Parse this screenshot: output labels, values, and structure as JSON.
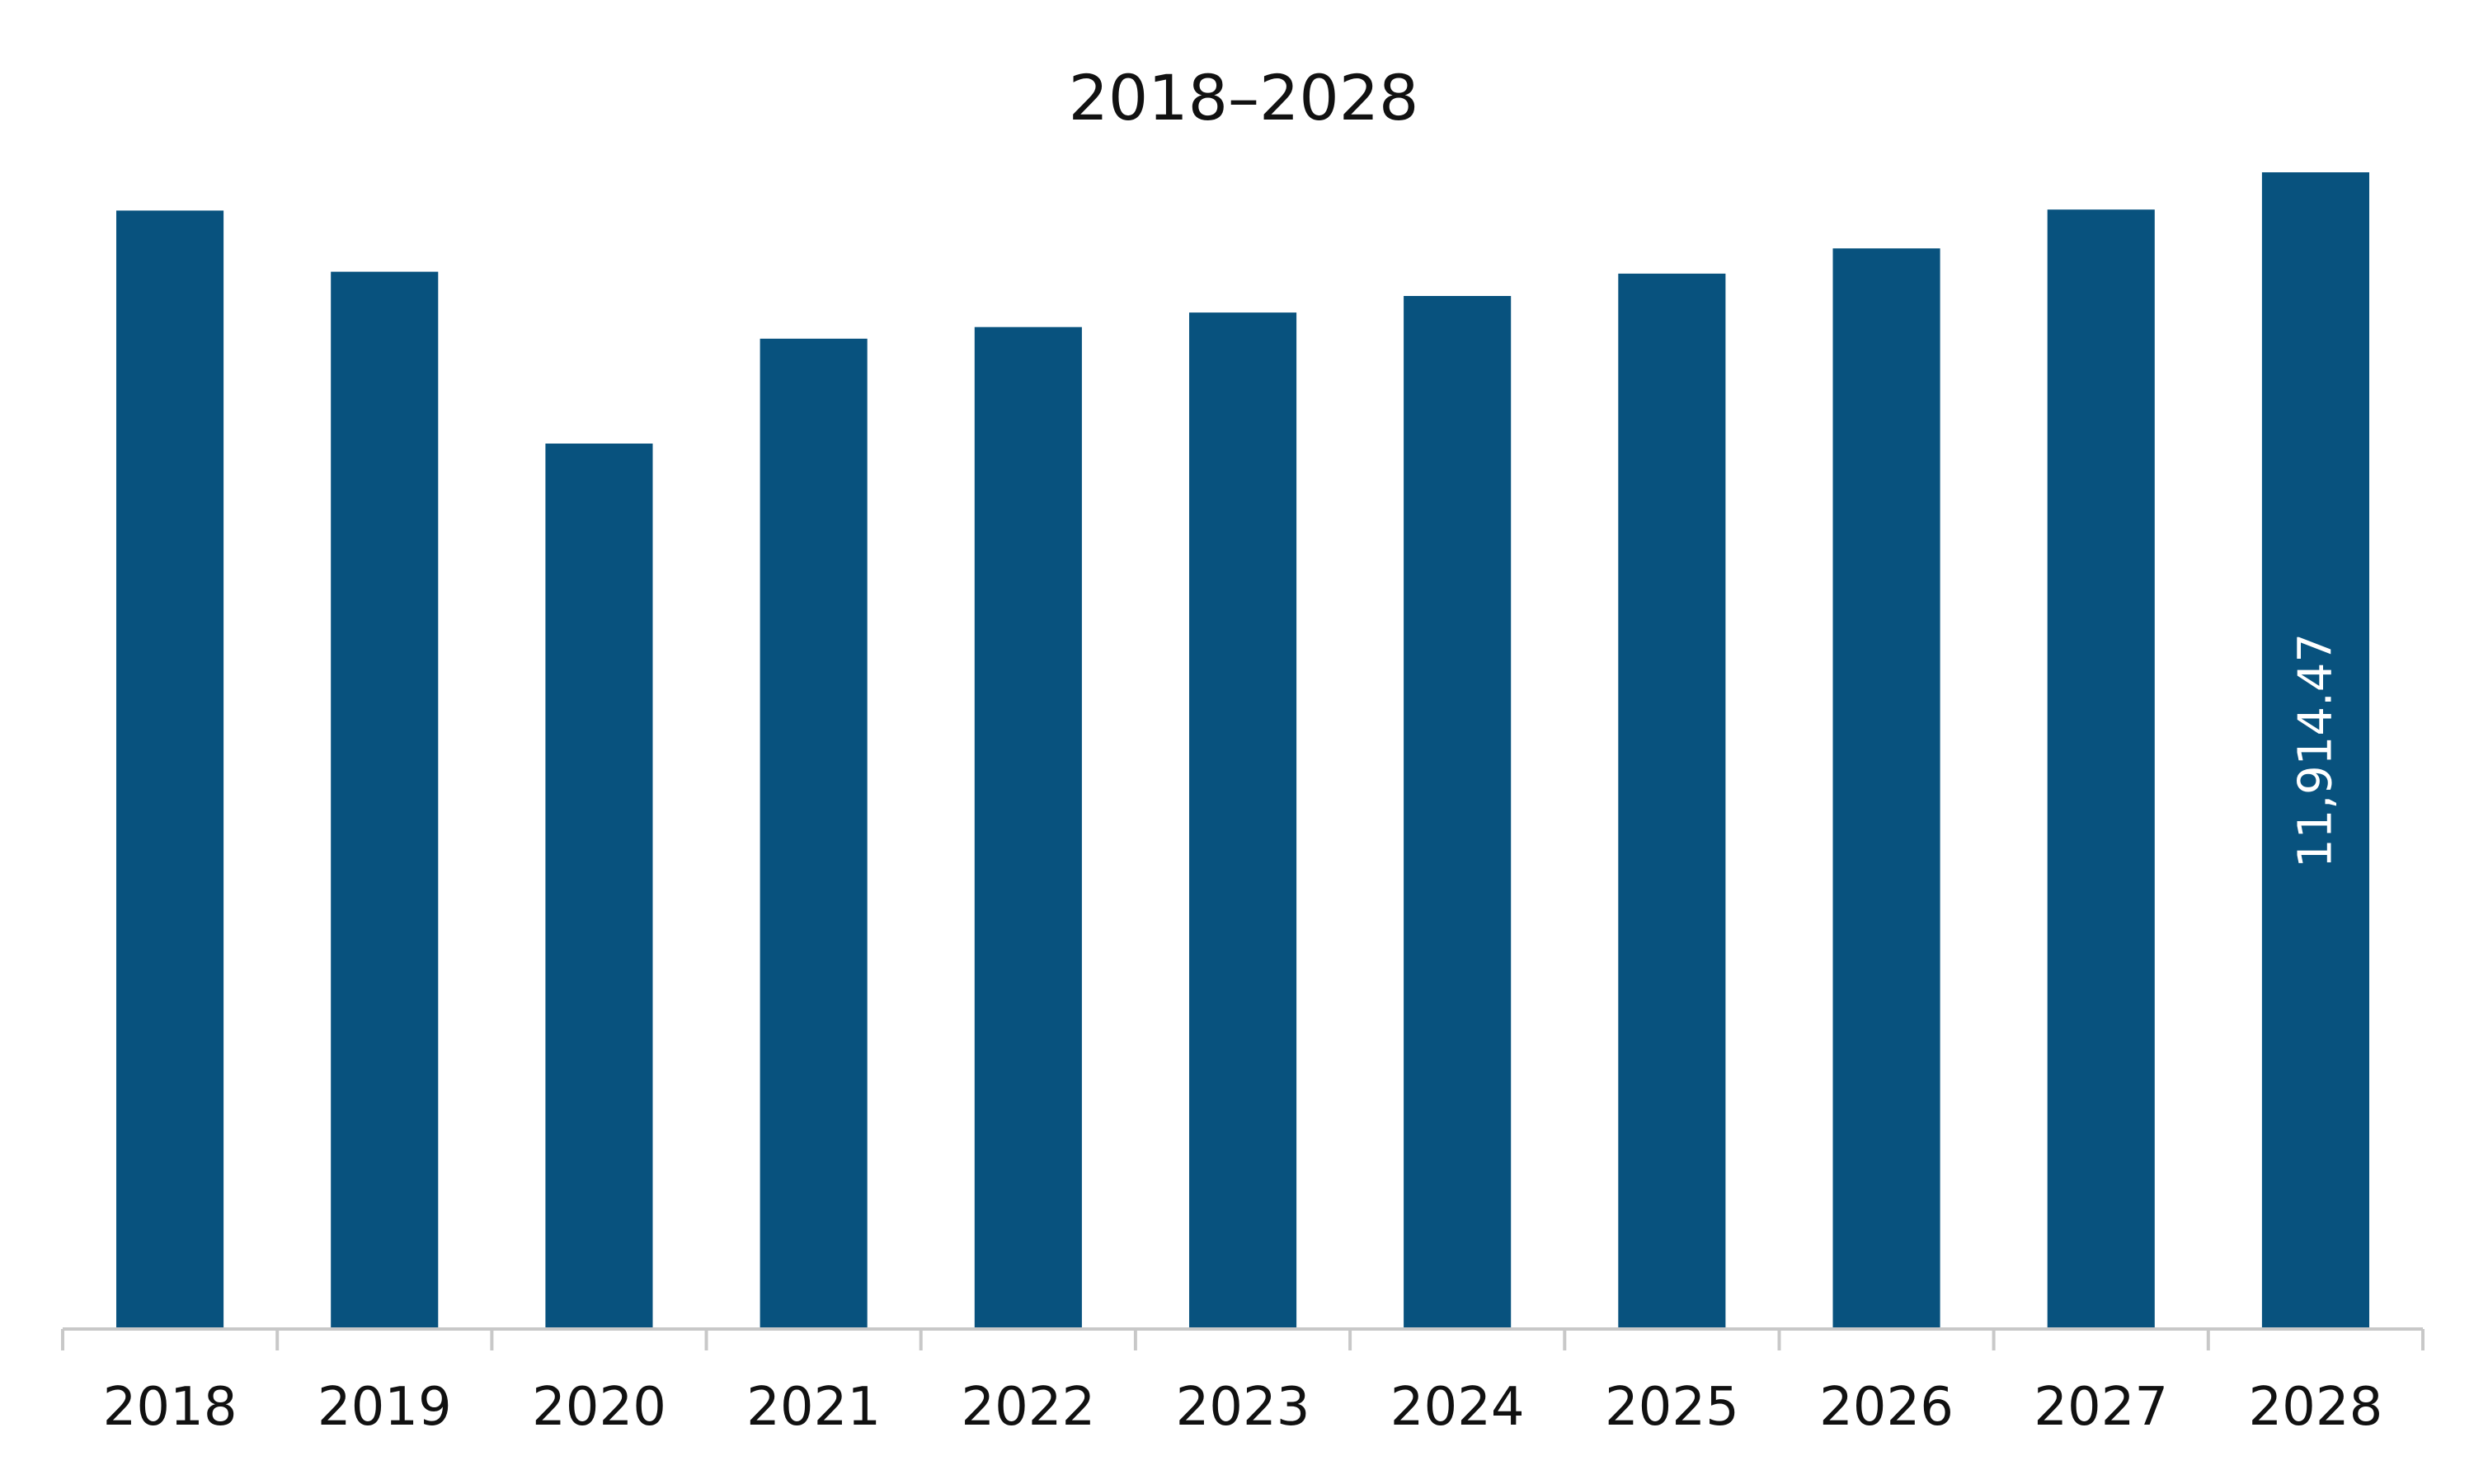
{
  "chart_data": {
    "type": "bar",
    "title": "2018–2028",
    "xlabel": "",
    "ylabel": "",
    "categories": [
      "2018",
      "2019",
      "2020",
      "2021",
      "2022",
      "2023",
      "2024",
      "2025",
      "2026",
      "2027",
      "2028"
    ],
    "values": [
      11520,
      10890,
      9120,
      10200,
      10320,
      10470,
      10640,
      10870,
      11130,
      11530,
      11914.47
    ],
    "data_labels": [
      null,
      null,
      null,
      null,
      null,
      null,
      null,
      null,
      null,
      null,
      "11,914.47"
    ],
    "ylim": [
      0,
      12500
    ],
    "grid": false,
    "legend": "none",
    "colors": {
      "bar": "#08527E",
      "axis": "#c8c8c8",
      "text": "#111111",
      "data_label": "#ffffff"
    }
  }
}
